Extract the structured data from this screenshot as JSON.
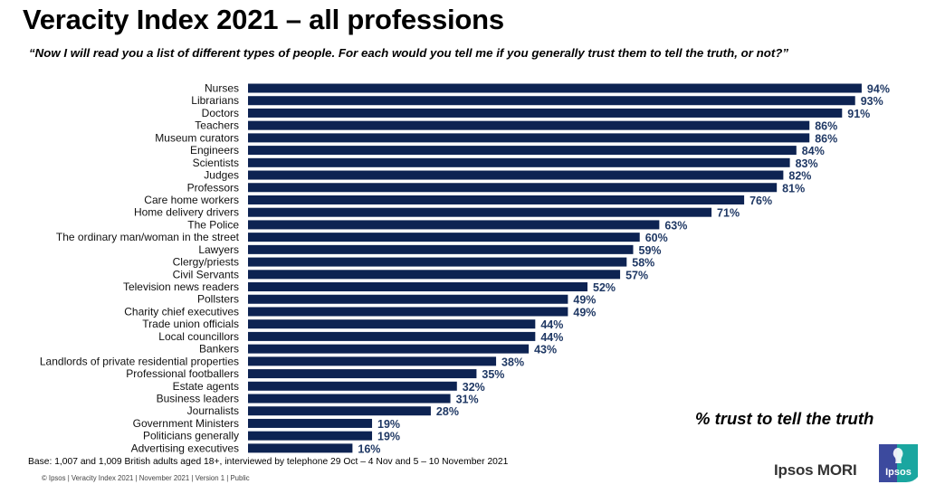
{
  "title": "Veracity Index 2021 – all professions",
  "question": "“Now I will read you a list of different types of people. For each would you tell me if you generally trust them to tell the truth, or not?”",
  "measure_label": "% trust to tell the truth",
  "base_note": "Base: 1,007 and 1,009 British adults aged 18+, interviewed by telephone 29 Oct – 4 Nov and 5 – 10 November 2021",
  "footer": "© Ipsos | Veracity Index 2021 | November 2021 | Version 1 | Public",
  "brand": {
    "name": "Ipsos MORI",
    "logo_text": "Ipsos",
    "logo_colors": {
      "left": "#3c4a9e",
      "right": "#1aa6a0"
    }
  },
  "colors": {
    "bar": "#0d2352",
    "value_label": "#1f3864"
  },
  "chart_data": {
    "type": "bar",
    "orientation": "horizontal",
    "title": "Veracity Index 2021 – all professions",
    "xlabel": "% trust to tell the truth",
    "ylabel": "",
    "xlim": [
      0,
      100
    ],
    "grid": false,
    "value_suffix": "%",
    "categories": [
      "Nurses",
      "Librarians",
      "Doctors",
      "Teachers",
      "Museum curators",
      "Engineers",
      "Scientists",
      "Judges",
      "Professors",
      "Care home workers",
      "Home delivery drivers",
      "The Police",
      "The ordinary man/woman in the street",
      "Lawyers",
      "Clergy/priests",
      "Civil Servants",
      "Television news readers",
      "Pollsters",
      "Charity chief executives",
      "Trade union officials",
      "Local councillors",
      "Bankers",
      "Landlords of private residential properties",
      "Professional footballers",
      "Estate agents",
      "Business leaders",
      "Journalists",
      "Government Ministers",
      "Politicians generally",
      "Advertising executives"
    ],
    "values": [
      94,
      93,
      91,
      86,
      86,
      84,
      83,
      82,
      81,
      76,
      71,
      63,
      60,
      59,
      58,
      57,
      52,
      49,
      49,
      44,
      44,
      43,
      38,
      35,
      32,
      31,
      28,
      19,
      19,
      16
    ],
    "value_labels": [
      "94%",
      "93%",
      "91%",
      "86%",
      "86%",
      "84%",
      "83%",
      "82%",
      "81%",
      "76%",
      "71%",
      "63%",
      "60%",
      "59%",
      "58%",
      "57%",
      "52%",
      "49%",
      "49%",
      "44%",
      "44%",
      "43%",
      "38%",
      "35%",
      "32%",
      "31%",
      "28%",
      "19%",
      "19%",
      "16%"
    ]
  }
}
